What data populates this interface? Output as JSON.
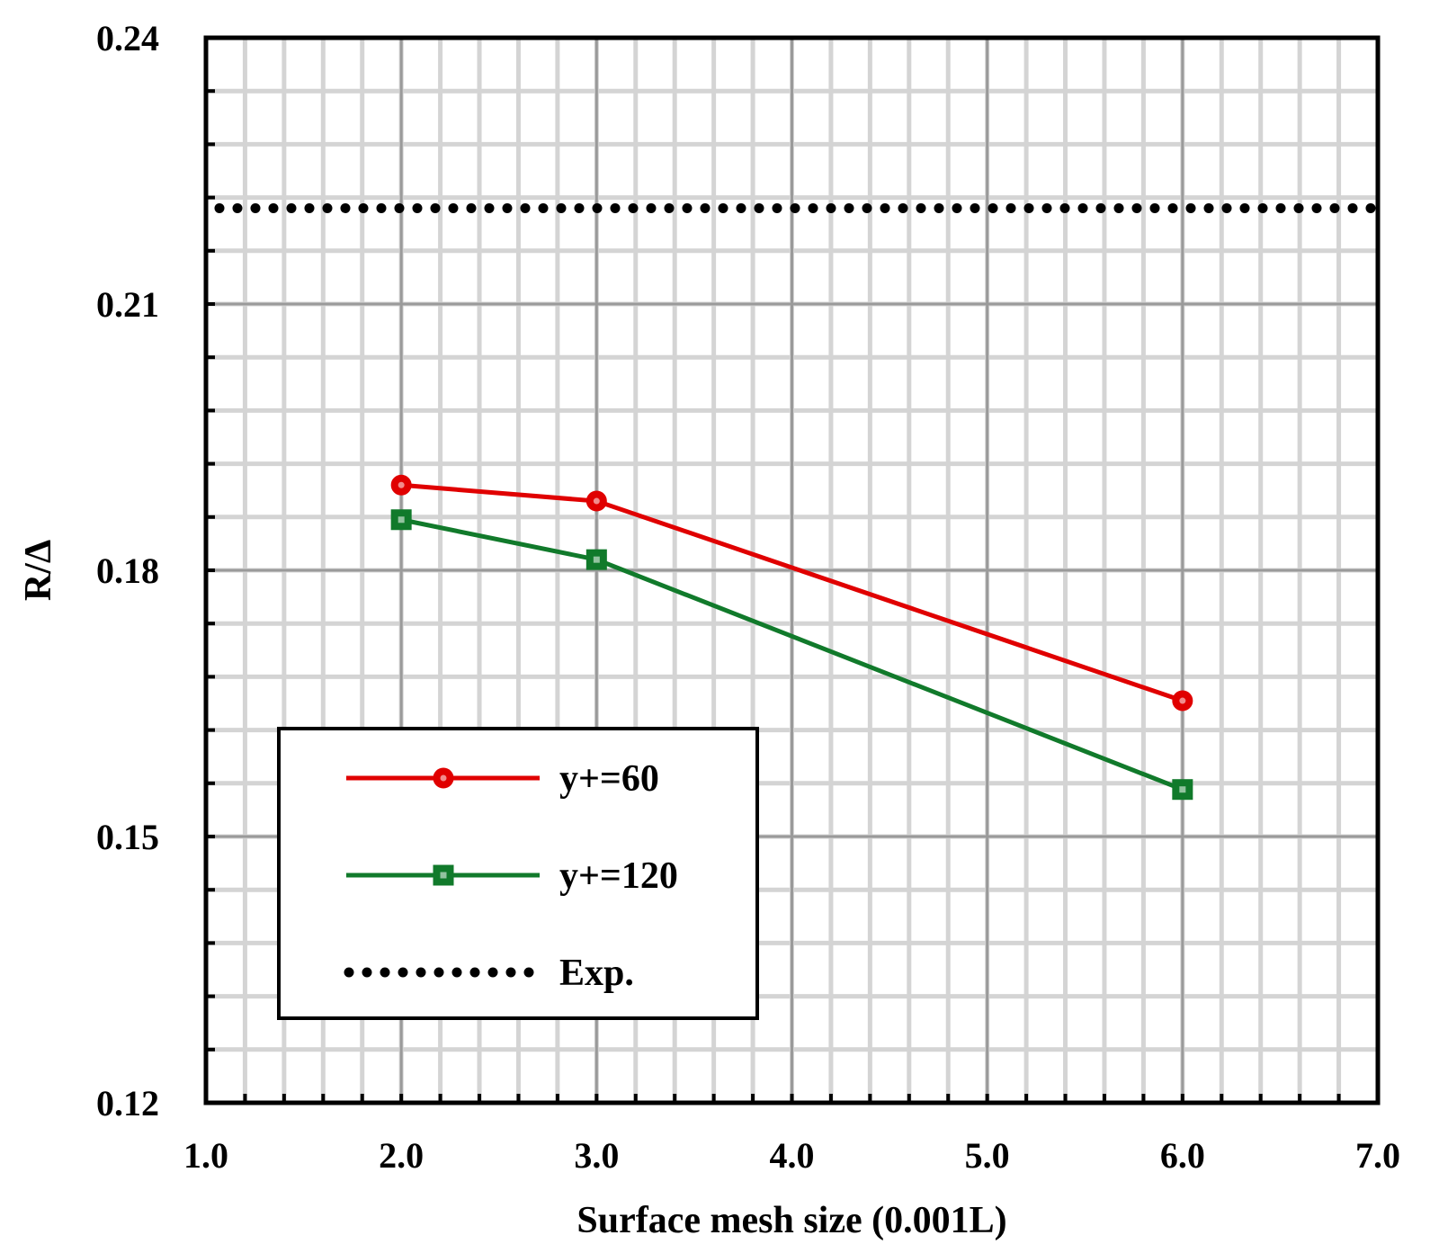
{
  "chart_data": {
    "type": "line",
    "title": "",
    "xlabel": "Surface mesh size (0.001L)",
    "ylabel": "R/Δ",
    "xlim": [
      1.0,
      7.0
    ],
    "ylim": [
      0.12,
      0.24
    ],
    "x_ticks": [
      1.0,
      2.0,
      3.0,
      4.0,
      5.0,
      6.0,
      7.0
    ],
    "x_tick_labels": [
      "1.0",
      "2.0",
      "3.0",
      "4.0",
      "5.0",
      "6.0",
      "7.0"
    ],
    "y_ticks": [
      0.12,
      0.15,
      0.18,
      0.21,
      0.24
    ],
    "y_tick_labels": [
      "0.12",
      "0.15",
      "0.18",
      "0.21",
      "0.24"
    ],
    "x_minor_step": 0.2,
    "y_minor_step": 0.006,
    "grid": true,
    "legend_position": "bottom-left",
    "series": [
      {
        "name": "y+=60",
        "color": "#e00000",
        "marker": "circle",
        "x": [
          2.0,
          3.0,
          6.0
        ],
        "values": [
          0.1896,
          0.1878,
          0.1653
        ]
      },
      {
        "name": "y+=120",
        "color": "#117a2b",
        "marker": "square",
        "x": [
          2.0,
          3.0,
          6.0
        ],
        "values": [
          0.1857,
          0.1812,
          0.1553
        ]
      }
    ],
    "reference_lines": [
      {
        "name": "Exp.",
        "color": "#000000",
        "style": "dotted",
        "value": 0.2208
      }
    ]
  }
}
